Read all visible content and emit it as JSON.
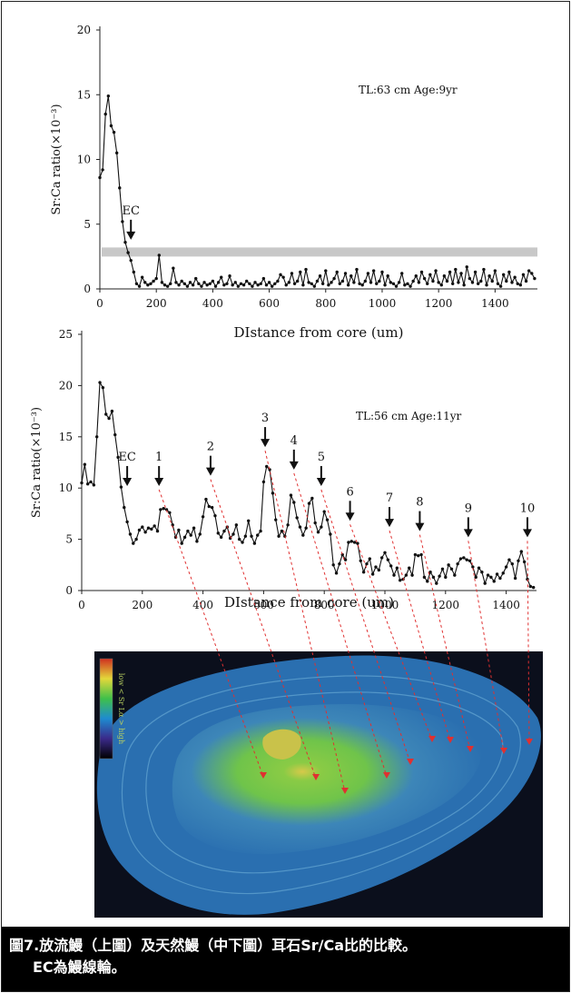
{
  "chart_data": [
    {
      "type": "line",
      "annotation": "TL:63 cm Age:9yr",
      "xlabel": "DIstance from core (um)",
      "ylabel": "Sr:Ca ratio(×10⁻³)",
      "xlim": [
        0,
        1550
      ],
      "ylim": [
        0,
        20
      ],
      "x_ticks": [
        0,
        200,
        400,
        600,
        800,
        1000,
        1200,
        1400
      ],
      "y_ticks": [
        0,
        5,
        10,
        15,
        20
      ],
      "band": [
        2.5,
        3.2
      ],
      "arrows": [
        {
          "label": "EC",
          "x": 110,
          "y": 3.8
        }
      ],
      "x": [
        0,
        10,
        20,
        30,
        40,
        50,
        60,
        70,
        80,
        90,
        100,
        110,
        120,
        130,
        140,
        150,
        160,
        170,
        180,
        190,
        200,
        210,
        220,
        230,
        240,
        250,
        260,
        270,
        280,
        290,
        300,
        310,
        320,
        330,
        340,
        350,
        360,
        370,
        380,
        390,
        400,
        410,
        420,
        430,
        440,
        450,
        460,
        470,
        480,
        490,
        500,
        510,
        520,
        530,
        540,
        550,
        560,
        570,
        580,
        590,
        600,
        610,
        620,
        630,
        640,
        650,
        660,
        670,
        680,
        690,
        700,
        710,
        720,
        730,
        740,
        750,
        760,
        770,
        780,
        790,
        800,
        810,
        820,
        830,
        840,
        850,
        860,
        870,
        880,
        890,
        900,
        910,
        920,
        930,
        940,
        950,
        960,
        970,
        980,
        990,
        1000,
        1010,
        1020,
        1030,
        1040,
        1050,
        1060,
        1070,
        1080,
        1090,
        1100,
        1110,
        1120,
        1130,
        1140,
        1150,
        1160,
        1170,
        1180,
        1190,
        1200,
        1210,
        1220,
        1230,
        1240,
        1250,
        1260,
        1270,
        1280,
        1290,
        1300,
        1310,
        1320,
        1330,
        1340,
        1350,
        1360,
        1370,
        1380,
        1390,
        1400,
        1410,
        1420,
        1430,
        1440,
        1450,
        1460,
        1470,
        1480,
        1490,
        1500,
        1510,
        1520,
        1530,
        1540
      ],
      "values": [
        8.6,
        9.2,
        13.5,
        14.9,
        12.6,
        12.1,
        10.5,
        7.8,
        5.2,
        3.6,
        2.8,
        2.2,
        1.3,
        0.4,
        0.2,
        0.9,
        0.5,
        0.3,
        0.4,
        0.6,
        0.8,
        2.6,
        0.5,
        0.3,
        0.2,
        0.4,
        1.6,
        0.5,
        0.3,
        0.6,
        0.4,
        0.2,
        0.5,
        0.3,
        0.8,
        0.4,
        0.2,
        0.5,
        0.3,
        0.4,
        0.6,
        0.2,
        0.5,
        0.9,
        0.3,
        0.4,
        1.0,
        0.3,
        0.5,
        0.2,
        0.4,
        0.3,
        0.6,
        0.4,
        0.2,
        0.5,
        0.3,
        0.4,
        0.8,
        0.3,
        0.5,
        0.2,
        0.4,
        0.6,
        1.1,
        0.9,
        0.3,
        0.5,
        1.2,
        0.4,
        0.6,
        1.3,
        0.3,
        1.5,
        0.5,
        0.4,
        0.2,
        0.6,
        1.0,
        0.4,
        1.4,
        0.3,
        0.5,
        0.8,
        1.3,
        0.4,
        0.6,
        1.2,
        0.3,
        1.0,
        0.5,
        1.5,
        0.4,
        0.3,
        0.6,
        1.2,
        0.5,
        1.4,
        0.4,
        0.6,
        1.3,
        0.3,
        1.0,
        0.5,
        0.4,
        0.2,
        0.5,
        1.2,
        0.3,
        0.4,
        0.2,
        0.6,
        1.0,
        0.5,
        1.3,
        0.8,
        0.4,
        1.1,
        0.6,
        1.4,
        0.5,
        0.3,
        1.0,
        0.6,
        1.3,
        0.4,
        1.5,
        0.5,
        1.2,
        0.3,
        1.7,
        0.8,
        0.5,
        1.3,
        0.4,
        0.6,
        1.5,
        0.3,
        1.0,
        0.6,
        1.4,
        0.4,
        0.2,
        1.1,
        0.6,
        1.3,
        0.5,
        0.9,
        0.4,
        0.3,
        1.1,
        0.6,
        1.4,
        1.2,
        0.8
      ]
    },
    {
      "type": "line",
      "annotation": "TL:56 cm Age:11yr",
      "xlabel": "DIstance from core (um)",
      "ylabel": "Sr:Ca ratio(×10⁻³)",
      "xlim": [
        0,
        1500
      ],
      "ylim": [
        0,
        25
      ],
      "x_ticks": [
        0,
        200,
        400,
        600,
        800,
        1000,
        1200,
        1400
      ],
      "y_ticks": [
        0,
        5,
        10,
        15,
        20,
        25
      ],
      "arrows": [
        {
          "label": "EC",
          "x": 150,
          "y": 10.2
        },
        {
          "label": "1",
          "x": 255,
          "y": 10.2
        },
        {
          "label": "2",
          "x": 425,
          "y": 11.2
        },
        {
          "label": "3",
          "x": 605,
          "y": 14.0
        },
        {
          "label": "4",
          "x": 700,
          "y": 11.8
        },
        {
          "label": "5",
          "x": 790,
          "y": 10.2
        },
        {
          "label": "6",
          "x": 885,
          "y": 6.8
        },
        {
          "label": "7",
          "x": 1015,
          "y": 6.2
        },
        {
          "label": "8",
          "x": 1115,
          "y": 5.8
        },
        {
          "label": "9",
          "x": 1275,
          "y": 5.2
        },
        {
          "label": "10",
          "x": 1470,
          "y": 5.2
        }
      ],
      "x": [
        0,
        10,
        20,
        30,
        40,
        50,
        60,
        70,
        80,
        90,
        100,
        110,
        120,
        130,
        140,
        150,
        160,
        170,
        180,
        190,
        200,
        210,
        220,
        230,
        240,
        250,
        260,
        270,
        280,
        290,
        300,
        310,
        320,
        330,
        340,
        350,
        360,
        370,
        380,
        390,
        400,
        410,
        420,
        430,
        440,
        450,
        460,
        470,
        480,
        490,
        500,
        510,
        520,
        530,
        540,
        550,
        560,
        570,
        580,
        590,
        600,
        610,
        620,
        630,
        640,
        650,
        660,
        670,
        680,
        690,
        700,
        710,
        720,
        730,
        740,
        750,
        760,
        770,
        780,
        790,
        800,
        810,
        820,
        830,
        840,
        850,
        860,
        870,
        880,
        890,
        900,
        910,
        920,
        930,
        940,
        950,
        960,
        970,
        980,
        990,
        1000,
        1010,
        1020,
        1030,
        1040,
        1050,
        1060,
        1070,
        1080,
        1090,
        1100,
        1110,
        1120,
        1130,
        1140,
        1150,
        1160,
        1170,
        1180,
        1190,
        1200,
        1210,
        1220,
        1230,
        1240,
        1250,
        1260,
        1270,
        1280,
        1290,
        1300,
        1310,
        1320,
        1330,
        1340,
        1350,
        1360,
        1370,
        1380,
        1390,
        1400,
        1410,
        1420,
        1430,
        1440,
        1450,
        1460,
        1470,
        1480,
        1490
      ],
      "values": [
        10.5,
        12.3,
        10.4,
        10.6,
        10.3,
        15.0,
        20.3,
        19.8,
        17.2,
        16.8,
        17.5,
        15.2,
        13.0,
        10.1,
        8.1,
        6.7,
        5.5,
        4.6,
        5.0,
        5.9,
        6.2,
        5.7,
        6.1,
        6.0,
        6.3,
        5.8,
        7.9,
        8.0,
        7.9,
        7.6,
        6.4,
        5.2,
        5.9,
        4.6,
        5.2,
        5.8,
        5.4,
        6.1,
        4.8,
        5.5,
        7.2,
        8.9,
        8.2,
        8.1,
        7.3,
        5.6,
        5.2,
        5.8,
        6.2,
        5.1,
        5.5,
        6.4,
        5.0,
        4.7,
        5.3,
        6.8,
        5.3,
        4.6,
        5.4,
        5.8,
        10.6,
        12.1,
        11.8,
        9.5,
        6.9,
        5.3,
        5.8,
        5.3,
        6.4,
        9.3,
        8.6,
        7.1,
        6.2,
        5.4,
        6.1,
        8.5,
        9.0,
        6.6,
        5.7,
        6.2,
        7.7,
        6.9,
        5.5,
        2.5,
        1.7,
        2.6,
        3.5,
        3.0,
        4.7,
        4.8,
        4.7,
        4.6,
        2.9,
        1.8,
        2.6,
        3.1,
        1.6,
        2.3,
        2.0,
        3.2,
        3.7,
        3.0,
        2.4,
        1.5,
        2.2,
        1.0,
        1.1,
        1.5,
        2.2,
        1.5,
        3.5,
        3.4,
        3.5,
        1.3,
        0.9,
        1.8,
        1.3,
        0.7,
        1.4,
        2.1,
        1.3,
        2.5,
        2.1,
        1.5,
        2.6,
        3.1,
        3.2,
        3.0,
        2.9,
        2.3,
        1.3,
        2.2,
        1.8,
        0.7,
        1.5,
        1.3,
        0.9,
        1.6,
        1.2,
        1.7,
        2.3,
        3.0,
        2.6,
        1.2,
        2.9,
        3.8,
        2.8,
        1.1,
        0.4,
        0.3
      ]
    }
  ],
  "colorbar": {
    "label": "low < Sr Lα > high"
  },
  "caption": {
    "line1": "圖7.放流鰻（上圖）及天然鰻（中下圖）耳石Sr/Ca比的比較。",
    "line2": "EC為鰻線輪。"
  },
  "colors": {
    "line": "#111111",
    "band": "#c8c8c8",
    "connector": "#e03030",
    "image_bg": "#0b0f1c",
    "ring_outer": "#2a6fb0",
    "ring_mid": "#3d86b8",
    "core_green": "#6fc44a",
    "core_yellow": "#d6c94a"
  }
}
